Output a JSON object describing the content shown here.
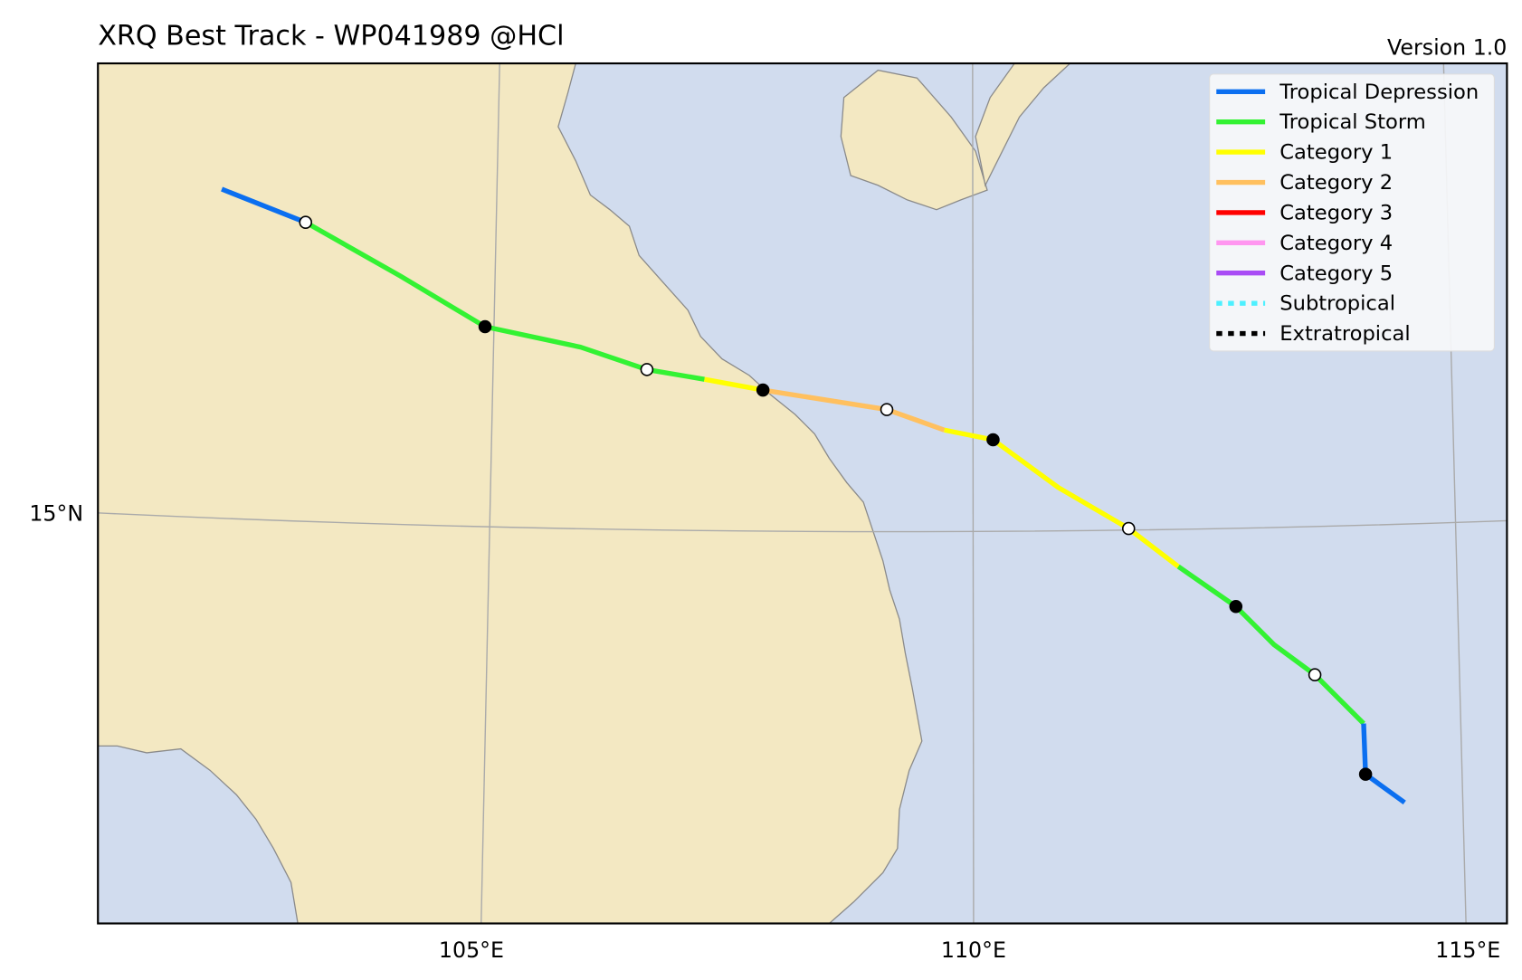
{
  "header": {
    "title": "XRQ Best Track - WP041989  @HCl",
    "version": "Version 1.0"
  },
  "legend": {
    "items": [
      "Tropical Depression",
      "Tropical Storm",
      "Category 1",
      "Category 2",
      "Category 3",
      "Category 4",
      "Category 5",
      "Subtropical",
      "Extratropical"
    ]
  },
  "axes": {
    "x_labels": [
      "105°E",
      "110°E",
      "115°E"
    ],
    "y_labels": [
      "15°N"
    ]
  }
}
